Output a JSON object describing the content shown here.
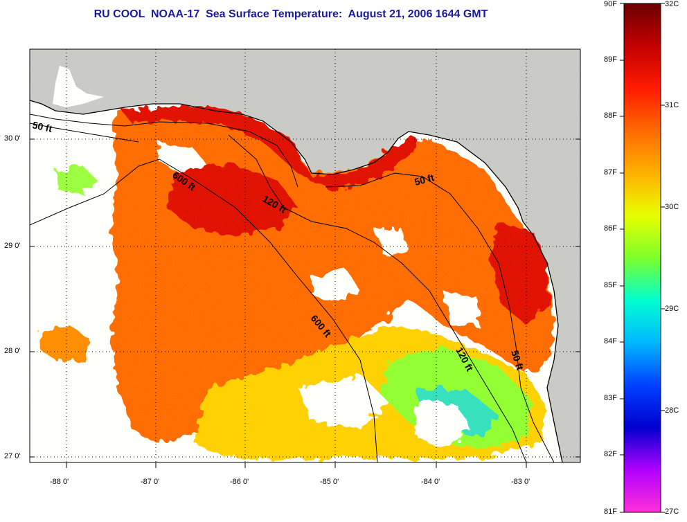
{
  "title": "RU COOL  NOAA-17  Sea Surface Temperature:  August 21, 2006 1644 GMT",
  "colors": {
    "title": "#1a1aa0",
    "land": "#c9c9c9",
    "no_data": "#ffffff",
    "frame": "#000000"
  },
  "map": {
    "lat_ticks": [
      "30 0'",
      "29 0'",
      "28 0'",
      "27 0'"
    ],
    "lon_ticks": [
      "-88 0'",
      "-87 0'",
      "-86 0'",
      "-85 0'",
      "-84 0'",
      "-83 0'"
    ],
    "contours": [
      {
        "id": "50ft-west",
        "label": "50 ft"
      },
      {
        "id": "600ft-west",
        "label": "600 ft"
      },
      {
        "id": "120ft",
        "label": "120 ft"
      },
      {
        "id": "50ft-east",
        "label": "50 ft"
      },
      {
        "id": "600ft-south",
        "label": "600 ft"
      },
      {
        "id": "120ft-south",
        "label": "120 ft"
      },
      {
        "id": "50ft-south",
        "label": "50 ft"
      }
    ]
  },
  "colorbar": {
    "fahrenheit_labels": [
      "90F",
      "89F",
      "88F",
      "87F",
      "86F",
      "85F",
      "84F",
      "83F",
      "82F",
      "81F"
    ],
    "celsius_labels": [
      "32C",
      "31C",
      "30C",
      "29C",
      "28C",
      "27C"
    ],
    "gradient_stops": [
      "#6b0000",
      "#c40000",
      "#ff1a00",
      "#ff6a00",
      "#ffb000",
      "#e8ff00",
      "#7dff2a",
      "#00ffd0",
      "#00b8ff",
      "#0040ff",
      "#0000d0",
      "#b000ff",
      "#ff30d8"
    ]
  }
}
